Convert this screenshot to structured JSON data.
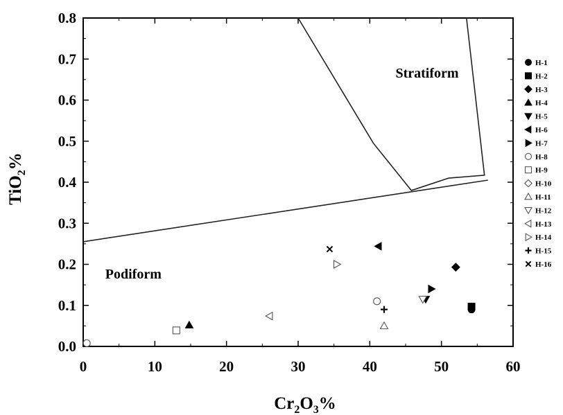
{
  "chart_data": {
    "type": "scatter",
    "title": "",
    "xlabel": {
      "base": "Cr",
      "sub1": "2",
      "mid": "O",
      "sub2": "3",
      "suffix": "%"
    },
    "ylabel": {
      "base": "TiO",
      "sub": "2",
      "suffix": "%"
    },
    "xlim": [
      0,
      60
    ],
    "ylim": [
      0.0,
      0.8
    ],
    "xticks": [
      0,
      10,
      20,
      30,
      40,
      50,
      60
    ],
    "yticks": [
      "0.0",
      "0.1",
      "0.2",
      "0.3",
      "0.4",
      "0.5",
      "0.6",
      "0.7",
      "0.8"
    ],
    "grid": false,
    "legend_position": "right",
    "regions": [
      {
        "label": "Stratiform",
        "x": 48,
        "y": 0.655
      },
      {
        "label": "Podiform",
        "x": 7,
        "y": 0.165
      }
    ],
    "boundary_lines": [
      {
        "name": "podiform-boundary",
        "points": [
          [
            0,
            0.255
          ],
          [
            56.5,
            0.405
          ]
        ]
      },
      {
        "name": "stratiform-boundary",
        "points": [
          [
            30,
            0.8
          ],
          [
            40.5,
            0.495
          ],
          [
            45.8,
            0.38
          ],
          [
            51,
            0.41
          ],
          [
            56,
            0.417
          ],
          [
            53.5,
            0.8
          ]
        ]
      }
    ],
    "series": [
      {
        "name": "H-1",
        "marker": "circle",
        "filled": true,
        "points": [
          [
            54.2,
            0.09
          ]
        ]
      },
      {
        "name": "H-2",
        "marker": "square",
        "filled": true,
        "points": [
          [
            54.2,
            0.097
          ]
        ]
      },
      {
        "name": "H-3",
        "marker": "diamond",
        "filled": true,
        "points": [
          [
            52.0,
            0.193
          ]
        ]
      },
      {
        "name": "H-4",
        "marker": "triangle-up",
        "filled": true,
        "points": [
          [
            14.8,
            0.052
          ]
        ]
      },
      {
        "name": "H-5",
        "marker": "triangle-down",
        "filled": true,
        "points": [
          [
            47.8,
            0.115
          ]
        ]
      },
      {
        "name": "H-6",
        "marker": "triangle-left",
        "filled": true,
        "points": [
          [
            41.2,
            0.244
          ]
        ]
      },
      {
        "name": "H-7",
        "marker": "triangle-right",
        "filled": true,
        "points": [
          [
            48.6,
            0.14
          ]
        ]
      },
      {
        "name": "H-8",
        "marker": "circle",
        "filled": false,
        "points": [
          [
            41.0,
            0.11
          ],
          [
            0.5,
            0.008
          ]
        ]
      },
      {
        "name": "H-9",
        "marker": "square",
        "filled": false,
        "points": [
          [
            13.0,
            0.039
          ]
        ]
      },
      {
        "name": "H-10",
        "marker": "diamond",
        "filled": false,
        "points": []
      },
      {
        "name": "H-11",
        "marker": "triangle-up",
        "filled": false,
        "points": [
          [
            42.0,
            0.05
          ]
        ]
      },
      {
        "name": "H-12",
        "marker": "triangle-down",
        "filled": false,
        "points": [
          [
            47.4,
            0.115
          ]
        ]
      },
      {
        "name": "H-13",
        "marker": "triangle-left",
        "filled": false,
        "points": [
          [
            26.0,
            0.074
          ]
        ]
      },
      {
        "name": "H-14",
        "marker": "triangle-right",
        "filled": false,
        "points": [
          [
            35.4,
            0.2
          ]
        ]
      },
      {
        "name": "H-15",
        "marker": "plus",
        "filled": true,
        "points": [
          [
            42.0,
            0.09
          ]
        ]
      },
      {
        "name": "H-16",
        "marker": "x",
        "filled": true,
        "points": [
          [
            34.4,
            0.237
          ]
        ]
      }
    ]
  }
}
